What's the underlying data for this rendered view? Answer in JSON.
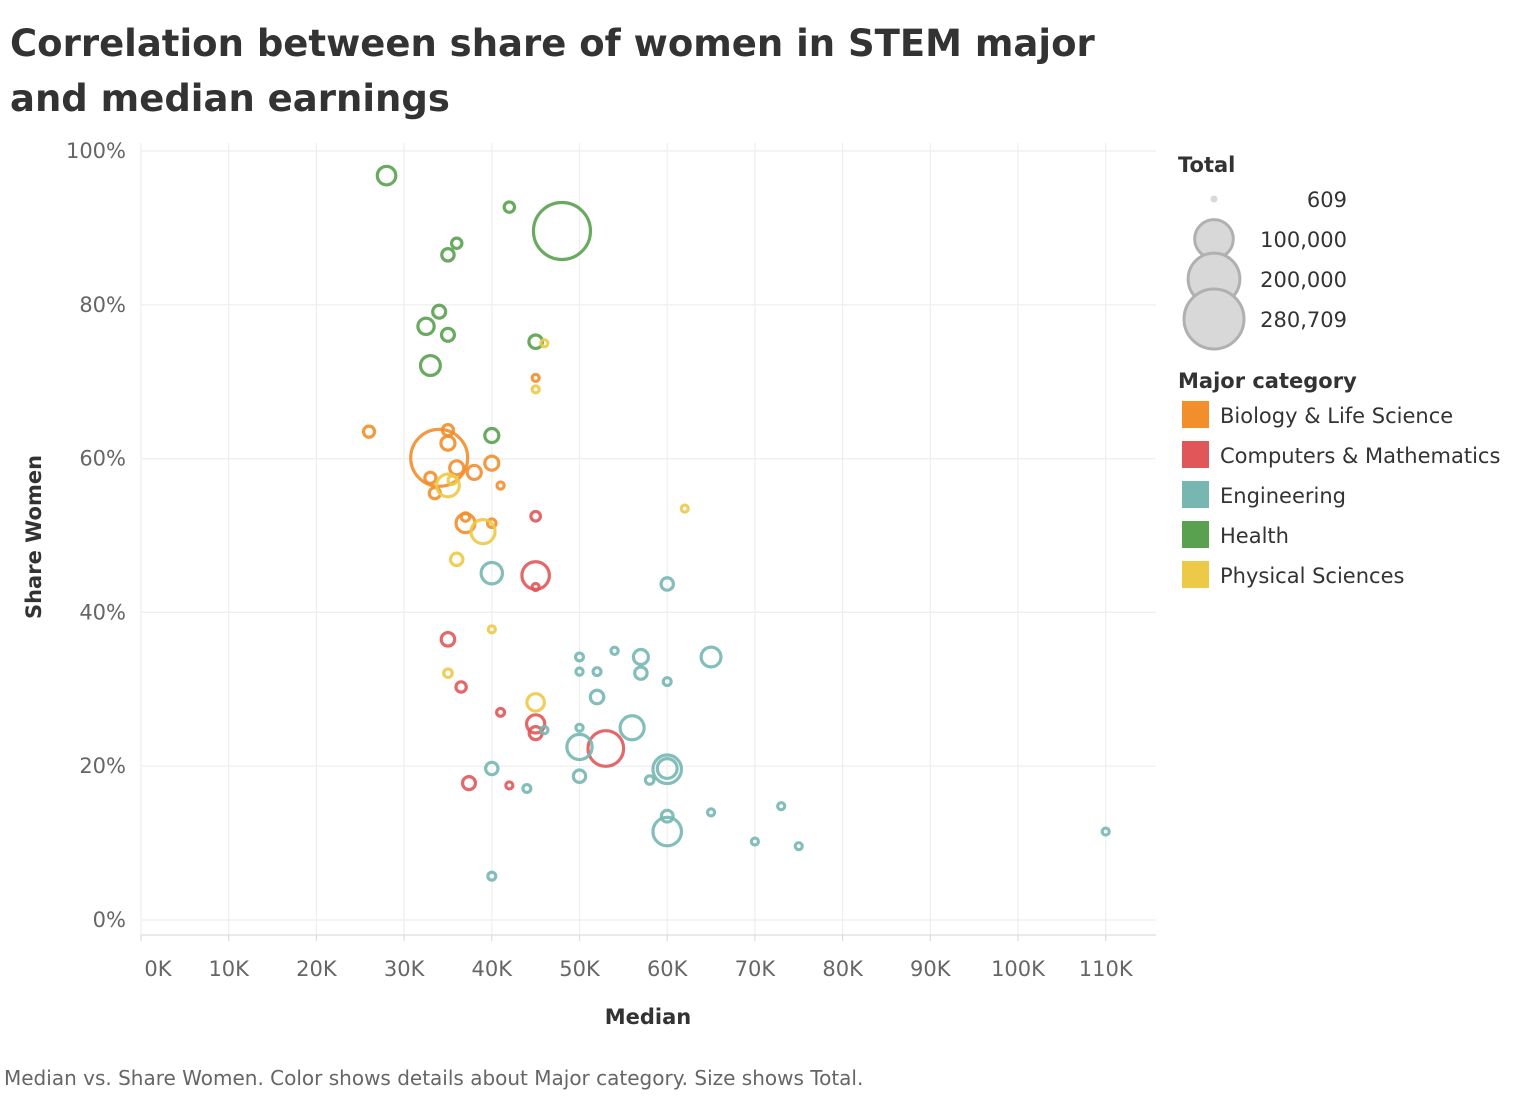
{
  "chart_data": {
    "type": "scatter",
    "title": "Correlation between share of women  in STEM major and median earnings",
    "xlabel": "Median",
    "ylabel": "Share Women",
    "xlim": [
      0,
      115000
    ],
    "ylim": [
      0,
      1.02
    ],
    "x_ticks": [
      {
        "value": 0,
        "label": "0K"
      },
      {
        "value": 10000,
        "label": "10K"
      },
      {
        "value": 20000,
        "label": "20K"
      },
      {
        "value": 30000,
        "label": "30K"
      },
      {
        "value": 40000,
        "label": "40K"
      },
      {
        "value": 50000,
        "label": "50K"
      },
      {
        "value": 60000,
        "label": "60K"
      },
      {
        "value": 70000,
        "label": "70K"
      },
      {
        "value": 80000,
        "label": "80K"
      },
      {
        "value": 90000,
        "label": "90K"
      },
      {
        "value": 100000,
        "label": "100K"
      },
      {
        "value": 110000,
        "label": "110K"
      }
    ],
    "y_ticks": [
      {
        "value": 0,
        "label": "0%"
      },
      {
        "value": 0.2,
        "label": "20%"
      },
      {
        "value": 0.4,
        "label": "40%"
      },
      {
        "value": 0.6,
        "label": "60%"
      },
      {
        "value": 0.8,
        "label": "80%"
      },
      {
        "value": 1.0,
        "label": "100%"
      }
    ],
    "grid": true,
    "legend_position": "right",
    "size_legend": {
      "title": "Total",
      "entries": [
        {
          "value": 609,
          "label": "609"
        },
        {
          "value": 100000,
          "label": "100,000"
        },
        {
          "value": 200000,
          "label": "200,000"
        },
        {
          "value": 280709,
          "label": "280,709"
        }
      ]
    },
    "color_legend": {
      "title": "Major category",
      "entries": [
        {
          "name": "Biology & Life Science",
          "color": "#f28e2b"
        },
        {
          "name": "Computers & Mathematics",
          "color": "#e15759"
        },
        {
          "name": "Engineering",
          "color": "#76b7b2"
        },
        {
          "name": "Health",
          "color": "#59a14f"
        },
        {
          "name": "Physical Sciences",
          "color": "#edc948"
        }
      ]
    },
    "series": [
      {
        "name": "Health",
        "points": [
          {
            "x": 28000,
            "y": 0.968,
            "size": 21000
          },
          {
            "x": 42000,
            "y": 0.927,
            "size": 4000
          },
          {
            "x": 48000,
            "y": 0.896,
            "size": 280709
          },
          {
            "x": 36000,
            "y": 0.88,
            "size": 4000
          },
          {
            "x": 35000,
            "y": 0.865,
            "size": 7000
          },
          {
            "x": 34000,
            "y": 0.791,
            "size": 8000
          },
          {
            "x": 32500,
            "y": 0.772,
            "size": 15000
          },
          {
            "x": 35000,
            "y": 0.761,
            "size": 8000
          },
          {
            "x": 45000,
            "y": 0.752,
            "size": 9000
          },
          {
            "x": 33000,
            "y": 0.721,
            "size": 25000
          },
          {
            "x": 40000,
            "y": 0.63,
            "size": 10000
          }
        ]
      },
      {
        "name": "Biology & Life Science",
        "points": [
          {
            "x": 26000,
            "y": 0.635,
            "size": 5000
          },
          {
            "x": 35000,
            "y": 0.637,
            "size": 5000
          },
          {
            "x": 35000,
            "y": 0.62,
            "size": 10000
          },
          {
            "x": 34000,
            "y": 0.601,
            "size": 280000
          },
          {
            "x": 40000,
            "y": 0.594,
            "size": 10000
          },
          {
            "x": 36000,
            "y": 0.588,
            "size": 10000
          },
          {
            "x": 38000,
            "y": 0.582,
            "size": 10000
          },
          {
            "x": 33000,
            "y": 0.575,
            "size": 5000
          },
          {
            "x": 41000,
            "y": 0.565,
            "size": 1000
          },
          {
            "x": 33500,
            "y": 0.555,
            "size": 5000
          },
          {
            "x": 37000,
            "y": 0.524,
            "size": 2000
          },
          {
            "x": 40000,
            "y": 0.516,
            "size": 2000
          },
          {
            "x": 37000,
            "y": 0.516,
            "size": 22000
          },
          {
            "x": 45000,
            "y": 0.705,
            "size": 900
          }
        ]
      },
      {
        "name": "Physical Sciences",
        "points": [
          {
            "x": 46000,
            "y": 0.75,
            "size": 900
          },
          {
            "x": 45000,
            "y": 0.69,
            "size": 900
          },
          {
            "x": 35000,
            "y": 0.565,
            "size": 35000
          },
          {
            "x": 62000,
            "y": 0.535,
            "size": 900
          },
          {
            "x": 39000,
            "y": 0.505,
            "size": 40000
          },
          {
            "x": 36000,
            "y": 0.469,
            "size": 7000
          },
          {
            "x": 40000,
            "y": 0.378,
            "size": 900
          },
          {
            "x": 35000,
            "y": 0.321,
            "size": 2000
          },
          {
            "x": 45000,
            "y": 0.283,
            "size": 18000
          },
          {
            "x": 35500,
            "y": 0.572,
            "size": 2000
          }
        ]
      },
      {
        "name": "Computers & Mathematics",
        "points": [
          {
            "x": 45000,
            "y": 0.525,
            "size": 3000
          },
          {
            "x": 45000,
            "y": 0.448,
            "size": 55000
          },
          {
            "x": 45000,
            "y": 0.433,
            "size": 900
          },
          {
            "x": 35000,
            "y": 0.365,
            "size": 9000
          },
          {
            "x": 36500,
            "y": 0.303,
            "size": 4000
          },
          {
            "x": 41000,
            "y": 0.27,
            "size": 1500
          },
          {
            "x": 45000,
            "y": 0.255,
            "size": 20000
          },
          {
            "x": 45000,
            "y": 0.243,
            "size": 8000
          },
          {
            "x": 53000,
            "y": 0.223,
            "size": 100000
          },
          {
            "x": 37400,
            "y": 0.178,
            "size": 8000
          },
          {
            "x": 42000,
            "y": 0.175,
            "size": 900
          }
        ]
      },
      {
        "name": "Engineering",
        "points": [
          {
            "x": 40000,
            "y": 0.451,
            "size": 30000
          },
          {
            "x": 60000,
            "y": 0.437,
            "size": 7000
          },
          {
            "x": 54000,
            "y": 0.35,
            "size": 1000
          },
          {
            "x": 50000,
            "y": 0.342,
            "size": 1500
          },
          {
            "x": 57000,
            "y": 0.342,
            "size": 12000
          },
          {
            "x": 65000,
            "y": 0.342,
            "size": 25000
          },
          {
            "x": 50000,
            "y": 0.323,
            "size": 1000
          },
          {
            "x": 52000,
            "y": 0.323,
            "size": 1500
          },
          {
            "x": 57000,
            "y": 0.321,
            "size": 7000
          },
          {
            "x": 60000,
            "y": 0.31,
            "size": 1500
          },
          {
            "x": 52000,
            "y": 0.29,
            "size": 9000
          },
          {
            "x": 50000,
            "y": 0.25,
            "size": 1000
          },
          {
            "x": 46000,
            "y": 0.247,
            "size": 1000
          },
          {
            "x": 56000,
            "y": 0.25,
            "size": 40000
          },
          {
            "x": 50000,
            "y": 0.225,
            "size": 45000
          },
          {
            "x": 60000,
            "y": 0.196,
            "size": 60000
          },
          {
            "x": 60000,
            "y": 0.197,
            "size": 25000
          },
          {
            "x": 40000,
            "y": 0.197,
            "size": 7000
          },
          {
            "x": 50000,
            "y": 0.187,
            "size": 7000
          },
          {
            "x": 58000,
            "y": 0.182,
            "size": 2000
          },
          {
            "x": 44000,
            "y": 0.171,
            "size": 1500
          },
          {
            "x": 73000,
            "y": 0.148,
            "size": 900
          },
          {
            "x": 65000,
            "y": 0.14,
            "size": 900
          },
          {
            "x": 60000,
            "y": 0.135,
            "size": 6000
          },
          {
            "x": 60000,
            "y": 0.115,
            "size": 60000
          },
          {
            "x": 110000,
            "y": 0.115,
            "size": 900
          },
          {
            "x": 70000,
            "y": 0.102,
            "size": 900
          },
          {
            "x": 75000,
            "y": 0.096,
            "size": 900
          },
          {
            "x": 40000,
            "y": 0.057,
            "size": 1500
          }
        ]
      }
    ]
  },
  "caption": "Median vs. Share Women.  Color shows details about Major category.  Size shows Total.",
  "colors": {
    "gridline": "#eeeeee",
    "axis_line": "#dddddd",
    "size_legend_fill": "#d8d8d8",
    "size_legend_stroke": "#b0b0b0"
  }
}
